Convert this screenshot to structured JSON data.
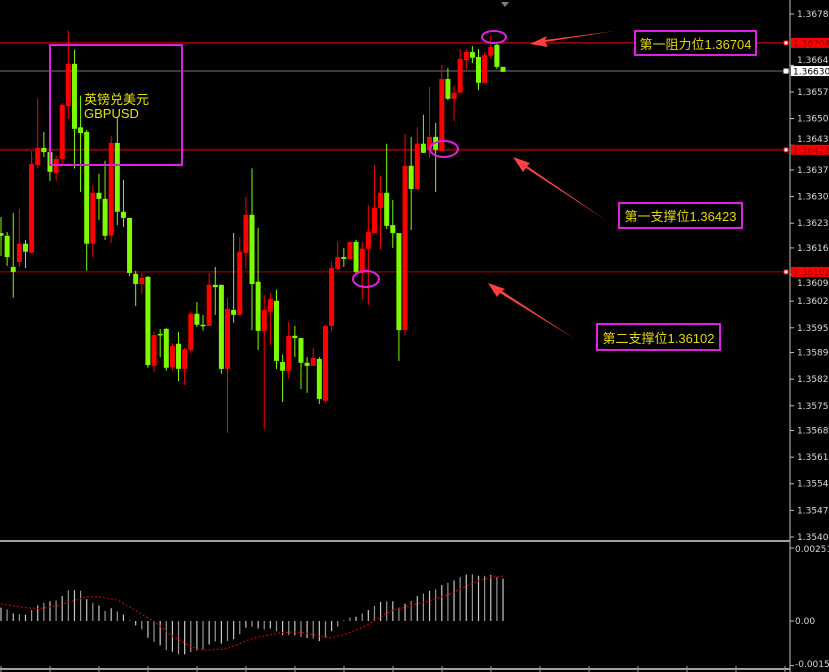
{
  "chart_data": {
    "type": "candlestick",
    "symbol_label_cn": "英镑兑美元",
    "symbol_label": "GBPUSD",
    "colors": {
      "up": "#ff0000",
      "down": "#7cfc00",
      "resistance_line": "#8b0000",
      "support_line": "#b00000",
      "current_line": "#707880",
      "annotation": "#e020e0",
      "arrow": "#ff4040",
      "histogram": "#c8c8c8",
      "signal": "#cc0000"
    },
    "price_axis": {
      "ylim": [
        1.35405,
        1.36817
      ],
      "ticks": [
        "1.36780",
        "1.36645",
        "1.36575",
        "1.36505",
        "1.36435",
        "1.36370",
        "1.36300",
        "1.36230",
        "1.36165",
        "1.36095",
        "1.36025",
        "1.35955",
        "1.35890",
        "1.35820",
        "1.35750",
        "1.35685",
        "1.35615",
        "1.35545",
        "1.35475",
        "1.35405"
      ]
    },
    "levels": {
      "resistance1": {
        "value": "1.36704",
        "label": "第一阻力位1.36704"
      },
      "support1": {
        "value": "1.36423",
        "label": "第一支撑位1.36423"
      },
      "support2": {
        "value": "1.36102",
        "label": "第二支撑位1.36102"
      },
      "current": {
        "value": "1.36630"
      }
    },
    "candles_ohlc": [
      [
        1.36204,
        1.36246,
        1.36144,
        1.36197
      ],
      [
        1.36197,
        1.36207,
        1.36118,
        1.36141
      ],
      [
        1.36115,
        1.36257,
        1.36034,
        1.36102
      ],
      [
        1.36128,
        1.36268,
        1.36115,
        1.36176
      ],
      [
        1.36176,
        1.36186,
        1.36112,
        1.36155
      ],
      [
        1.36152,
        1.3642,
        1.36152,
        1.36386
      ],
      [
        1.36383,
        1.36557,
        1.36375,
        1.36428
      ],
      [
        1.36428,
        1.3647,
        1.36404,
        1.36417
      ],
      [
        1.36417,
        1.36444,
        1.36341,
        1.36365
      ],
      [
        1.36362,
        1.36407,
        1.36341,
        1.36399
      ],
      [
        1.36399,
        1.36546,
        1.36386,
        1.36541
      ],
      [
        1.36538,
        1.36736,
        1.36504,
        1.36649
      ],
      [
        1.36649,
        1.36686,
        1.36374,
        1.36478
      ],
      [
        1.36482,
        1.36565,
        1.36312,
        1.36467
      ],
      [
        1.3647,
        1.36475,
        1.36105,
        1.36176
      ],
      [
        1.36176,
        1.36331,
        1.36141,
        1.3631
      ],
      [
        1.3631,
        1.3636,
        1.36239,
        1.36294
      ],
      [
        1.36294,
        1.36394,
        1.36186,
        1.36197
      ],
      [
        1.36197,
        1.36459,
        1.36178,
        1.36441
      ],
      [
        1.36441,
        1.36509,
        1.36225,
        1.3626
      ],
      [
        1.3626,
        1.36344,
        1.3622,
        1.36244
      ],
      [
        1.36244,
        1.36244,
        1.36091,
        1.36099
      ],
      [
        1.36097,
        1.36105,
        1.36012,
        1.3607
      ],
      [
        1.3607,
        1.36099,
        1.36044,
        1.36086
      ],
      [
        1.36089,
        1.36091,
        1.3585,
        1.35857
      ],
      [
        1.35855,
        1.35944,
        1.35839,
        1.35936
      ],
      [
        1.35939,
        1.35952,
        1.35878,
        1.35936
      ],
      [
        1.35952,
        1.35955,
        1.35842,
        1.3585
      ],
      [
        1.35852,
        1.35915,
        1.35842,
        1.35907
      ],
      [
        1.35913,
        1.35944,
        1.35815,
        1.35847
      ],
      [
        1.35847,
        1.35902,
        1.35805,
        1.35899
      ],
      [
        1.35897,
        1.35997,
        1.35889,
        1.35992
      ],
      [
        1.35992,
        1.36023,
        1.35957,
        1.35963
      ],
      [
        1.35963,
        1.35989,
        1.35947,
        1.3596
      ],
      [
        1.3596,
        1.36099,
        1.3596,
        1.36068
      ],
      [
        1.36068,
        1.36115,
        1.35989,
        1.36062
      ],
      [
        1.36068,
        1.36068,
        1.35834,
        1.35847
      ],
      [
        1.35847,
        1.36034,
        1.35679,
        1.36005
      ],
      [
        1.36002,
        1.36204,
        1.35968,
        1.35989
      ],
      [
        1.35989,
        1.36194,
        1.35989,
        1.36155
      ],
      [
        1.36152,
        1.36299,
        1.36112,
        1.36252
      ],
      [
        1.36252,
        1.36374,
        1.35949,
        1.3607
      ],
      [
        1.36076,
        1.36218,
        1.35897,
        1.35947
      ],
      [
        1.35947,
        1.36041,
        1.35689,
        1.36002
      ],
      [
        1.35997,
        1.36047,
        1.3591,
        1.36031
      ],
      [
        1.36026,
        1.36055,
        1.35847,
        1.35868
      ],
      [
        1.35865,
        1.35884,
        1.3576,
        1.35842
      ],
      [
        1.35842,
        1.3597,
        1.35821,
        1.35934
      ],
      [
        1.35934,
        1.3596,
        1.35878,
        1.35928
      ],
      [
        1.35928,
        1.35928,
        1.35794,
        1.35863
      ],
      [
        1.35863,
        1.35878,
        1.35784,
        1.35855
      ],
      [
        1.35855,
        1.35902,
        1.35855,
        1.35876
      ],
      [
        1.35873,
        1.35878,
        1.35755,
        1.35768
      ],
      [
        1.35763,
        1.35963,
        1.35757,
        1.3596
      ],
      [
        1.3596,
        1.36128,
        1.35947,
        1.36112
      ],
      [
        1.3611,
        1.36181,
        1.36107,
        1.36141
      ],
      [
        1.36141,
        1.36165,
        1.36115,
        1.36136
      ],
      [
        1.36136,
        1.36181,
        1.36136,
        1.36181
      ],
      [
        1.36181,
        1.36186,
        1.36099,
        1.36102
      ],
      [
        1.36099,
        1.36181,
        1.36028,
        1.36163
      ],
      [
        1.36163,
        1.36278,
        1.36015,
        1.36207
      ],
      [
        1.36204,
        1.36383,
        1.36204,
        1.3627
      ],
      [
        1.3627,
        1.36354,
        1.3616,
        1.3631
      ],
      [
        1.3631,
        1.36439,
        1.36215,
        1.36223
      ],
      [
        1.36225,
        1.36291,
        1.36165,
        1.36204
      ],
      [
        1.36204,
        1.36204,
        1.35868,
        1.35949
      ],
      [
        1.35949,
        1.36465,
        1.35936,
        1.36381
      ],
      [
        1.36381,
        1.36457,
        1.36212,
        1.3632
      ],
      [
        1.3632,
        1.36482,
        1.36317,
        1.36439
      ],
      [
        1.36439,
        1.36515,
        1.36415,
        1.36415
      ],
      [
        1.36423,
        1.36588,
        1.36402,
        1.36457
      ],
      [
        1.36457,
        1.36494,
        1.36312,
        1.36423
      ],
      [
        1.3642,
        1.36646,
        1.3642,
        1.36609
      ],
      [
        1.36609,
        1.36638,
        1.36554,
        1.36557
      ],
      [
        1.36557,
        1.36591,
        1.36499,
        1.36573
      ],
      [
        1.36573,
        1.36688,
        1.36573,
        1.36662
      ],
      [
        1.36659,
        1.36688,
        1.36633,
        1.3668
      ],
      [
        1.3668,
        1.36696,
        1.36651,
        1.36665
      ],
      [
        1.36667,
        1.36688,
        1.3658,
        1.36599
      ],
      [
        1.36599,
        1.3668,
        1.36599,
        1.36672
      ],
      [
        1.3667,
        1.36722,
        1.36665,
        1.36693
      ],
      [
        1.36699,
        1.36701,
        1.36636,
        1.36641
      ],
      [
        1.36641,
        1.36641,
        1.36628,
        1.36628
      ]
    ],
    "indicator": {
      "type": "histogram+signal",
      "ylim": [
        -0.001538,
        0.002518
      ],
      "ticks": [
        "0.002518",
        "0.00",
        "-0.001538"
      ],
      "histogram": [
        0.00046,
        0.0004,
        0.00026,
        0.00023,
        0.00022,
        0.00038,
        0.00054,
        0.00063,
        0.00068,
        0.00071,
        0.00086,
        0.00106,
        0.00106,
        0.00104,
        0.00075,
        0.00063,
        0.00054,
        0.00035,
        0.00044,
        0.00033,
        0.00022,
        2e-05,
        -0.00015,
        -0.00029,
        -0.00058,
        -0.00072,
        -0.00084,
        -0.001,
        -0.00106,
        -0.00115,
        -0.00115,
        -0.00107,
        -0.00101,
        -0.00098,
        -0.00081,
        -0.00071,
        -0.00078,
        -0.00069,
        -0.00063,
        -0.00046,
        -0.00023,
        -0.0002,
        -0.00026,
        -0.00029,
        -0.00026,
        -0.00035,
        -0.00049,
        -0.00049,
        -0.00049,
        -0.00055,
        -0.00059,
        -0.0006,
        -0.00069,
        -0.00058,
        -0.00035,
        -0.0002,
        2e-05,
        0.00012,
        0.00015,
        0.00026,
        0.00038,
        0.00052,
        0.00066,
        0.00068,
        0.00068,
        0.00046,
        0.0006,
        0.00069,
        0.00086,
        0.00095,
        0.00104,
        0.00109,
        0.00124,
        0.00132,
        0.0014,
        0.00151,
        0.0016,
        0.00161,
        0.00156,
        0.00156,
        0.00159,
        0.00152,
        0.00146
      ],
      "signal": [
        0.00059,
        0.00056,
        0.00052,
        0.00049,
        0.00046,
        0.00045,
        0.00043,
        0.00045,
        0.00048,
        0.00052,
        0.00058,
        0.00065,
        0.00071,
        0.00077,
        0.00084,
        0.00084,
        0.00084,
        0.0008,
        0.00076,
        0.00072,
        0.0006,
        0.00048,
        0.00037,
        0.00023,
        0.00011,
        -1e-05,
        -0.00018,
        -0.00035,
        -0.00052,
        -0.00064,
        -0.00077,
        -0.00089,
        -0.00095,
        -0.001,
        -0.001,
        -0.00098,
        -0.00097,
        -0.00095,
        -0.00086,
        -0.00078,
        -0.00068,
        -0.00062,
        -0.00056,
        -0.00052,
        -0.00047,
        -0.00043,
        -0.0004,
        -0.00039,
        -0.00038,
        -0.00039,
        -0.00043,
        -0.00047,
        -0.00052,
        -0.00055,
        -0.00058,
        -0.00052,
        -0.00047,
        -0.00039,
        -0.00031,
        -0.00023,
        -0.00012,
        1e-05,
        0.00014,
        0.00026,
        0.00038,
        0.00043,
        0.00048,
        0.00053,
        0.00059,
        0.00064,
        0.0007,
        0.00076,
        0.00084,
        0.0009,
        0.001,
        0.00111,
        0.0012,
        0.0013,
        0.00138,
        0.00144,
        0.0015,
        0.00153,
        0.00155
      ]
    }
  }
}
